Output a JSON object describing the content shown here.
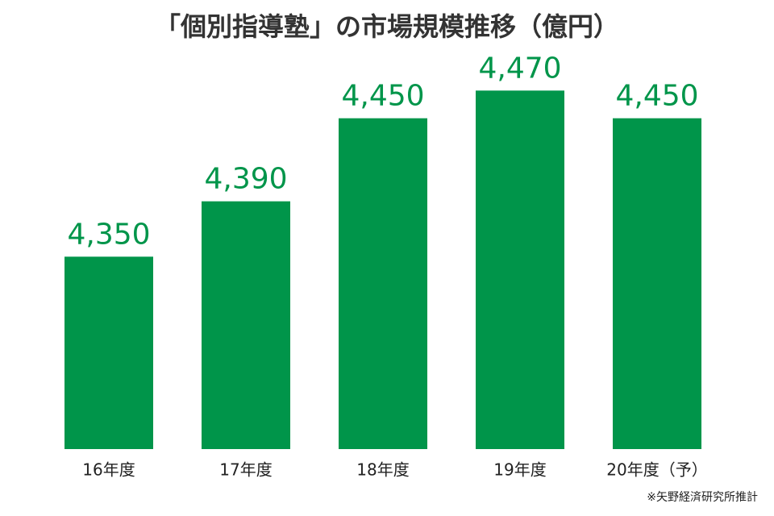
{
  "chart_data": {
    "type": "bar",
    "title": "「個別指導塾」の市場規模推移（億円）",
    "categories": [
      "16年度",
      "17年度",
      "18年度",
      "19年度",
      "20年度（予）"
    ],
    "values": [
      4350,
      4390,
      4450,
      4470,
      4450
    ],
    "value_labels": [
      "4,350",
      "4,390",
      "4,450",
      "4,470",
      "4,450"
    ],
    "color": "#00954a",
    "ylim": [
      4211,
      4490
    ],
    "source": "※矢野経済研究所推計"
  }
}
